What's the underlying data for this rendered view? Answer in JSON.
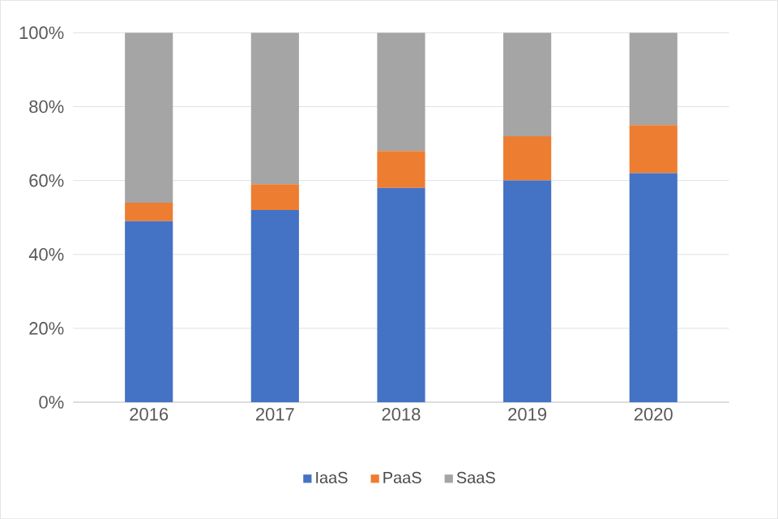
{
  "chart_data": {
    "type": "bar",
    "stacked": true,
    "categories": [
      "2016",
      "2017",
      "2018",
      "2019",
      "2020"
    ],
    "series": [
      {
        "name": "IaaS",
        "color": "#4472c4",
        "values": [
          49,
          52,
          58,
          60,
          62
        ]
      },
      {
        "name": "PaaS",
        "color": "#ed7d31",
        "values": [
          5,
          7,
          10,
          12,
          13
        ]
      },
      {
        "name": "SaaS",
        "color": "#a5a5a5",
        "values": [
          46,
          41,
          32,
          28,
          25
        ]
      }
    ],
    "ylim": [
      0,
      100
    ],
    "yticks": [
      {
        "value": 0,
        "label": "0%"
      },
      {
        "value": 20,
        "label": "20%"
      },
      {
        "value": 40,
        "label": "40%"
      },
      {
        "value": 60,
        "label": "60%"
      },
      {
        "value": 80,
        "label": "80%"
      },
      {
        "value": 100,
        "label": "100%"
      }
    ],
    "grid": "y",
    "legend": "bottom"
  }
}
